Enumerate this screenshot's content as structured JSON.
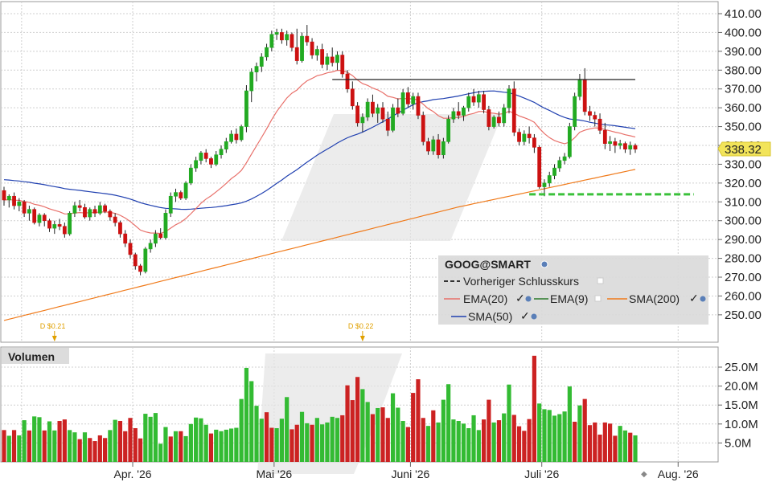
{
  "chart_data": {
    "type": "candlestick",
    "symbol": "GOOG@SMART",
    "last_price": 338.32,
    "last_price_label": "338.32",
    "price_axis": {
      "range": [
        240,
        415
      ],
      "ticks": [
        "410.00",
        "400.00",
        "390.00",
        "380.00",
        "370.00",
        "360.00",
        "350.00",
        "340.00",
        "330.00",
        "320.00",
        "310.00",
        "300.00",
        "290.00",
        "280.00",
        "270.00",
        "260.00",
        "250.00"
      ]
    },
    "volume_axis": {
      "range": [
        0,
        29
      ],
      "ticks": [
        "25.0M",
        "20.0M",
        "15.0M",
        "10.0M",
        "5.0M"
      ]
    },
    "x_ticks": [
      "Apr. '26",
      "Mai '26",
      "Juni '26",
      "Juli '26",
      "Aug. '26"
    ],
    "x_tick_index": [
      21,
      49,
      76,
      102,
      129
    ],
    "grid": true,
    "legend": {
      "title": "GOOG@SMART",
      "placement": "bottom-right",
      "items": [
        {
          "label": "Vorheriger Schlusskurs",
          "color": "#333333",
          "style": "dashed"
        },
        {
          "label": "EMA(20)",
          "color": "#e8706a",
          "style": "solid"
        },
        {
          "label": "EMA(9)",
          "color": "#2a7a2a",
          "style": "solid"
        },
        {
          "label": "SMA(200)",
          "color": "#f07a1a",
          "style": "solid"
        },
        {
          "label": "SMA(50)",
          "color": "#2040b0",
          "style": "solid"
        }
      ]
    },
    "volume_title": "Volumen",
    "dividends": [
      {
        "index": 10,
        "label": "D $0.21"
      },
      {
        "index": 71,
        "label": "D $0.22"
      }
    ],
    "resistance_line": {
      "from_index": 65,
      "to_index": 125,
      "value": 375
    },
    "support_line": {
      "from_index": 104,
      "to_index": 135,
      "value": 314
    },
    "colors": {
      "up": "#22aa22",
      "down": "#cc1111",
      "up_vol": "#33bb33",
      "down_vol": "#cc2222",
      "grid": "#c8c8c8"
    },
    "candles": [
      [
        316,
        318,
        308,
        311
      ],
      [
        311,
        314,
        307,
        313
      ],
      [
        313,
        315,
        306,
        308
      ],
      [
        308,
        312,
        305,
        310
      ],
      [
        310,
        311,
        302,
        304
      ],
      [
        304,
        308,
        300,
        306
      ],
      [
        306,
        307,
        298,
        299
      ],
      [
        299,
        304,
        297,
        303
      ],
      [
        303,
        304,
        297,
        300
      ],
      [
        300,
        301,
        294,
        296
      ],
      [
        296,
        300,
        293,
        298
      ],
      [
        298,
        301,
        295,
        297
      ],
      [
        297,
        299,
        291,
        293
      ],
      [
        293,
        305,
        292,
        304
      ],
      [
        304,
        310,
        302,
        308
      ],
      [
        308,
        311,
        305,
        307
      ],
      [
        307,
        309,
        301,
        302
      ],
      [
        302,
        307,
        300,
        306
      ],
      [
        306,
        308,
        302,
        304
      ],
      [
        304,
        310,
        303,
        308
      ],
      [
        308,
        309,
        304,
        305
      ],
      [
        305,
        306,
        300,
        302
      ],
      [
        302,
        304,
        297,
        299
      ],
      [
        299,
        300,
        291,
        293
      ],
      [
        293,
        295,
        286,
        288
      ],
      [
        288,
        290,
        280,
        282
      ],
      [
        282,
        283,
        274,
        276
      ],
      [
        276,
        277,
        271,
        273
      ],
      [
        273,
        286,
        272,
        285
      ],
      [
        285,
        290,
        283,
        288
      ],
      [
        288,
        295,
        286,
        293
      ],
      [
        293,
        296,
        290,
        291
      ],
      [
        291,
        306,
        290,
        304
      ],
      [
        304,
        315,
        302,
        313
      ],
      [
        313,
        317,
        310,
        315
      ],
      [
        315,
        316,
        311,
        312
      ],
      [
        312,
        321,
        311,
        320
      ],
      [
        320,
        330,
        319,
        328
      ],
      [
        328,
        334,
        326,
        332
      ],
      [
        332,
        337,
        330,
        336
      ],
      [
        336,
        338,
        331,
        333
      ],
      [
        333,
        334,
        328,
        330
      ],
      [
        330,
        337,
        329,
        335
      ],
      [
        335,
        340,
        333,
        338
      ],
      [
        338,
        344,
        336,
        342
      ],
      [
        342,
        348,
        341,
        346
      ],
      [
        346,
        349,
        341,
        343
      ],
      [
        343,
        351,
        342,
        350
      ],
      [
        350,
        372,
        347,
        369
      ],
      [
        369,
        381,
        363,
        379
      ],
      [
        379,
        384,
        374,
        382
      ],
      [
        382,
        389,
        379,
        387
      ],
      [
        387,
        394,
        385,
        392
      ],
      [
        392,
        401,
        390,
        399
      ],
      [
        399,
        402,
        396,
        400
      ],
      [
        400,
        402,
        394,
        396
      ],
      [
        396,
        401,
        393,
        399
      ],
      [
        399,
        400,
        390,
        392
      ],
      [
        392,
        402,
        383,
        385
      ],
      [
        385,
        400,
        384,
        398
      ],
      [
        398,
        404,
        393,
        395
      ],
      [
        395,
        397,
        386,
        388
      ],
      [
        388,
        393,
        385,
        391
      ],
      [
        391,
        394,
        381,
        383
      ],
      [
        383,
        389,
        380,
        387
      ],
      [
        387,
        392,
        382,
        384
      ],
      [
        384,
        390,
        380,
        388
      ],
      [
        388,
        390,
        376,
        378
      ],
      [
        378,
        380,
        368,
        370
      ],
      [
        370,
        374,
        359,
        361
      ],
      [
        361,
        363,
        350,
        352
      ],
      [
        352,
        357,
        347,
        355
      ],
      [
        355,
        365,
        353,
        363
      ],
      [
        363,
        367,
        355,
        357
      ],
      [
        357,
        362,
        352,
        360
      ],
      [
        360,
        363,
        352,
        354
      ],
      [
        354,
        358,
        345,
        348
      ],
      [
        348,
        362,
        347,
        360
      ],
      [
        360,
        365,
        355,
        357
      ],
      [
        357,
        370,
        356,
        368
      ],
      [
        368,
        371,
        360,
        362
      ],
      [
        362,
        368,
        359,
        366
      ],
      [
        366,
        368,
        354,
        356
      ],
      [
        356,
        358,
        340,
        342
      ],
      [
        342,
        344,
        335,
        337
      ],
      [
        337,
        345,
        335,
        343
      ],
      [
        343,
        346,
        333,
        335
      ],
      [
        335,
        344,
        333,
        342
      ],
      [
        342,
        356,
        341,
        354
      ],
      [
        354,
        360,
        352,
        358
      ],
      [
        358,
        363,
        354,
        356
      ],
      [
        356,
        361,
        353,
        360
      ],
      [
        360,
        368,
        358,
        366
      ],
      [
        366,
        370,
        361,
        363
      ],
      [
        363,
        369,
        360,
        367
      ],
      [
        367,
        369,
        357,
        359
      ],
      [
        359,
        361,
        348,
        350
      ],
      [
        350,
        356,
        349,
        355
      ],
      [
        355,
        358,
        350,
        352
      ],
      [
        352,
        362,
        350,
        360
      ],
      [
        360,
        372,
        357,
        370
      ],
      [
        370,
        374,
        345,
        347
      ],
      [
        347,
        349,
        340,
        342
      ],
      [
        342,
        348,
        340,
        346
      ],
      [
        346,
        350,
        341,
        344
      ],
      [
        344,
        346,
        336,
        339
      ],
      [
        339,
        340,
        317,
        318
      ],
      [
        318,
        322,
        313,
        320
      ],
      [
        320,
        326,
        318,
        324
      ],
      [
        324,
        330,
        322,
        328
      ],
      [
        328,
        334,
        326,
        332
      ],
      [
        332,
        336,
        330,
        334
      ],
      [
        334,
        352,
        333,
        350
      ],
      [
        350,
        368,
        348,
        366
      ],
      [
        366,
        378,
        364,
        375
      ],
      [
        375,
        381,
        356,
        358
      ],
      [
        358,
        361,
        353,
        356
      ],
      [
        356,
        358,
        350,
        354
      ],
      [
        354,
        357,
        346,
        348
      ],
      [
        348,
        352,
        338,
        341
      ],
      [
        341,
        345,
        337,
        342
      ],
      [
        342,
        344,
        336,
        340
      ],
      [
        340,
        343,
        338,
        341
      ],
      [
        341,
        342,
        336,
        338
      ],
      [
        338,
        342,
        335,
        340
      ],
      [
        340,
        341,
        336,
        338
      ]
    ],
    "volumes": [
      [
        8.4,
        0
      ],
      [
        6.9,
        1
      ],
      [
        8.4,
        0
      ],
      [
        7.0,
        1
      ],
      [
        11.0,
        1
      ],
      [
        8.3,
        0
      ],
      [
        12.0,
        1
      ],
      [
        11.8,
        1
      ],
      [
        8.3,
        0
      ],
      [
        10.7,
        1
      ],
      [
        8.3,
        1
      ],
      [
        10.8,
        0
      ],
      [
        11.2,
        0
      ],
      [
        8.4,
        1
      ],
      [
        7.8,
        1
      ],
      [
        6.0,
        0
      ],
      [
        7.8,
        1
      ],
      [
        6.3,
        0
      ],
      [
        5.5,
        0
      ],
      [
        7.0,
        0
      ],
      [
        6.3,
        0
      ],
      [
        8.4,
        1
      ],
      [
        11.1,
        1
      ],
      [
        10.8,
        0
      ],
      [
        8.1,
        0
      ],
      [
        11.6,
        0
      ],
      [
        8.9,
        0
      ],
      [
        6.2,
        0
      ],
      [
        12.7,
        1
      ],
      [
        11.9,
        1
      ],
      [
        12.9,
        1
      ],
      [
        4.8,
        1
      ],
      [
        9.2,
        1
      ],
      [
        6.7,
        0
      ],
      [
        8.1,
        1
      ],
      [
        8.1,
        0
      ],
      [
        6.8,
        1
      ],
      [
        10.0,
        1
      ],
      [
        11.7,
        1
      ],
      [
        11.5,
        1
      ],
      [
        9.8,
        1
      ],
      [
        7.5,
        0
      ],
      [
        8.5,
        1
      ],
      [
        8.1,
        1
      ],
      [
        8.5,
        1
      ],
      [
        8.8,
        1
      ],
      [
        9.0,
        1
      ],
      [
        16.6,
        1
      ],
      [
        24.8,
        1
      ],
      [
        21.3,
        1
      ],
      [
        14.8,
        1
      ],
      [
        11.4,
        1
      ],
      [
        13.1,
        0
      ],
      [
        9.0,
        0
      ],
      [
        8.9,
        1
      ],
      [
        11.4,
        1
      ],
      [
        17.1,
        1
      ],
      [
        8.6,
        0
      ],
      [
        9.8,
        0
      ],
      [
        13.2,
        1
      ],
      [
        10.2,
        1
      ],
      [
        9.8,
        0
      ],
      [
        11.6,
        1
      ],
      [
        9.9,
        1
      ],
      [
        10.4,
        1
      ],
      [
        11.9,
        1
      ],
      [
        11.6,
        1
      ],
      [
        12.3,
        0
      ],
      [
        20.2,
        0
      ],
      [
        16.3,
        0
      ],
      [
        22.4,
        0
      ],
      [
        19.2,
        1
      ],
      [
        15.8,
        1
      ],
      [
        12.6,
        0
      ],
      [
        14.2,
        1
      ],
      [
        14.4,
        0
      ],
      [
        11.6,
        0
      ],
      [
        18.1,
        1
      ],
      [
        14.3,
        1
      ],
      [
        10.8,
        1
      ],
      [
        9.2,
        0
      ],
      [
        18.2,
        0
      ],
      [
        21.8,
        0
      ],
      [
        11.6,
        0
      ],
      [
        9.5,
        1
      ],
      [
        13.6,
        0
      ],
      [
        10.4,
        1
      ],
      [
        16.4,
        1
      ],
      [
        20.5,
        1
      ],
      [
        11.2,
        1
      ],
      [
        10.8,
        1
      ],
      [
        10.1,
        1
      ],
      [
        8.9,
        1
      ],
      [
        12.3,
        1
      ],
      [
        8.4,
        1
      ],
      [
        11.2,
        0
      ],
      [
        16.4,
        0
      ],
      [
        10.4,
        1
      ],
      [
        11.0,
        0
      ],
      [
        12.8,
        1
      ],
      [
        20.4,
        1
      ],
      [
        12.4,
        0
      ],
      [
        9.4,
        0
      ],
      [
        8.2,
        0
      ],
      [
        11.3,
        0
      ],
      [
        28.0,
        0
      ],
      [
        15.4,
        1
      ],
      [
        13.9,
        1
      ],
      [
        13.7,
        1
      ],
      [
        12.2,
        1
      ],
      [
        12.6,
        1
      ],
      [
        13.3,
        1
      ],
      [
        19.9,
        1
      ],
      [
        10.6,
        0
      ],
      [
        14.9,
        1
      ],
      [
        16.6,
        0
      ],
      [
        9.7,
        0
      ],
      [
        10.4,
        0
      ],
      [
        7.2,
        0
      ],
      [
        10.4,
        0
      ],
      [
        10.1,
        0
      ],
      [
        6.9,
        0
      ],
      [
        9.5,
        1
      ],
      [
        8.3,
        1
      ],
      [
        7.7,
        0
      ],
      [
        7.0,
        1
      ]
    ]
  }
}
